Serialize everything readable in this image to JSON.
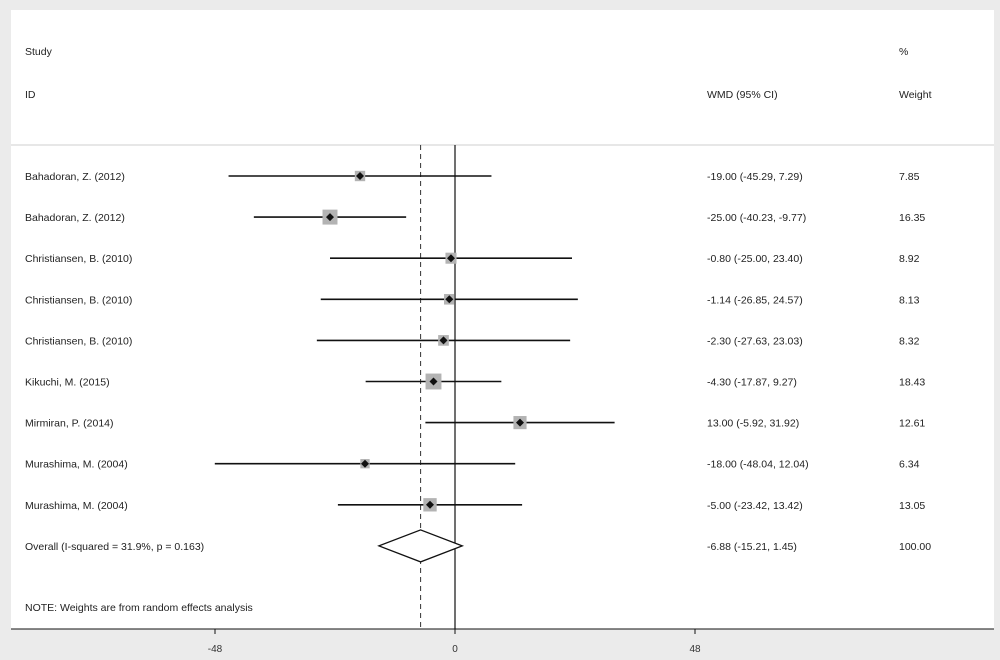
{
  "chart_data": {
    "type": "forest",
    "header": {
      "study_label": "Study",
      "id_label": "ID",
      "effect_label": "WMD (95% CI)",
      "percent_label": "%",
      "weight_label": "Weight"
    },
    "studies": [
      {
        "name": "Bahadoran, Z.  (2012)",
        "estimate": -19.0,
        "lower": -45.29,
        "upper": 7.29,
        "weight": 7.85,
        "ci_text": "-19.00 (-45.29, 7.29)",
        "weight_text": "7.85"
      },
      {
        "name": "Bahadoran, Z.  (2012)",
        "estimate": -25.0,
        "lower": -40.23,
        "upper": -9.77,
        "weight": 16.35,
        "ci_text": "-25.00 (-40.23, -9.77)",
        "weight_text": "16.35"
      },
      {
        "name": "Christiansen, B.  (2010)",
        "estimate": -0.8,
        "lower": -25.0,
        "upper": 23.4,
        "weight": 8.92,
        "ci_text": "-0.80 (-25.00, 23.40)",
        "weight_text": "8.92"
      },
      {
        "name": "Christiansen, B.  (2010)",
        "estimate": -1.14,
        "lower": -26.85,
        "upper": 24.57,
        "weight": 8.13,
        "ci_text": "-1.14 (-26.85, 24.57)",
        "weight_text": "8.13"
      },
      {
        "name": "Christiansen, B.  (2010)",
        "estimate": -2.3,
        "lower": -27.63,
        "upper": 23.03,
        "weight": 8.32,
        "ci_text": "-2.30 (-27.63, 23.03)",
        "weight_text": "8.32"
      },
      {
        "name": "Kikuchi, M.  (2015)",
        "estimate": -4.3,
        "lower": -17.87,
        "upper": 9.27,
        "weight": 18.43,
        "ci_text": "-4.30 (-17.87, 9.27)",
        "weight_text": "18.43"
      },
      {
        "name": "Mirmiran, P.  (2014)",
        "estimate": 13.0,
        "lower": -5.92,
        "upper": 31.92,
        "weight": 12.61,
        "ci_text": "13.00 (-5.92, 31.92)",
        "weight_text": "12.61"
      },
      {
        "name": "Murashima, M.  (2004)",
        "estimate": -18.0,
        "lower": -48.04,
        "upper": 12.04,
        "weight": 6.34,
        "ci_text": "-18.00 (-48.04, 12.04)",
        "weight_text": "6.34"
      },
      {
        "name": "Murashima, M.  (2004)",
        "estimate": -5.0,
        "lower": -23.42,
        "upper": 13.42,
        "weight": 13.05,
        "ci_text": "-5.00 (-23.42, 13.42)",
        "weight_text": "13.05"
      }
    ],
    "overall": {
      "label": "Overall  (I-squared = 31.9%, p = 0.163)",
      "estimate": -6.88,
      "lower": -15.21,
      "upper": 1.45,
      "ci_text": "-6.88 (-15.21, 1.45)",
      "weight_text": "100.00"
    },
    "note": "NOTE: Weights are from random effects analysis",
    "x_ticks": [
      {
        "value": -48,
        "label": "-48"
      },
      {
        "value": 0,
        "label": "0"
      },
      {
        "value": 48,
        "label": "48"
      }
    ],
    "null_line": 0
  }
}
